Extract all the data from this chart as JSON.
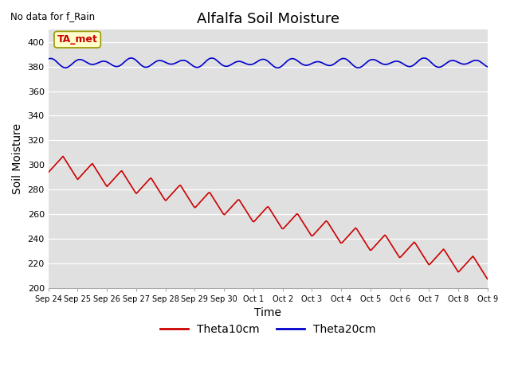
{
  "title": "Alfalfa Soil Moisture",
  "xlabel": "Time",
  "ylabel": "Soil Moisture",
  "annotation_text": "No data for f_Rain",
  "legend_label1": "Theta10cm",
  "legend_label2": "Theta20cm",
  "ta_met_label": "TA_met",
  "ylim": [
    200,
    410
  ],
  "yticks": [
    200,
    220,
    240,
    260,
    280,
    300,
    320,
    340,
    360,
    380,
    400
  ],
  "xtick_labels": [
    "Sep 24",
    "Sep 25",
    "Sep 26",
    "Sep 27",
    "Sep 28",
    "Sep 29",
    "Sep 30",
    "Oct 1",
    "Oct 2",
    "Oct 3",
    "Oct 4",
    "Oct 5",
    "Oct 6",
    "Oct 7",
    "Oct 8",
    "Oct 9"
  ],
  "color_red": "#cc0000",
  "color_blue": "#0000cc",
  "bg_color": "#e0e0e0",
  "title_fontsize": 13,
  "axis_fontsize": 10,
  "tick_fontsize": 8
}
